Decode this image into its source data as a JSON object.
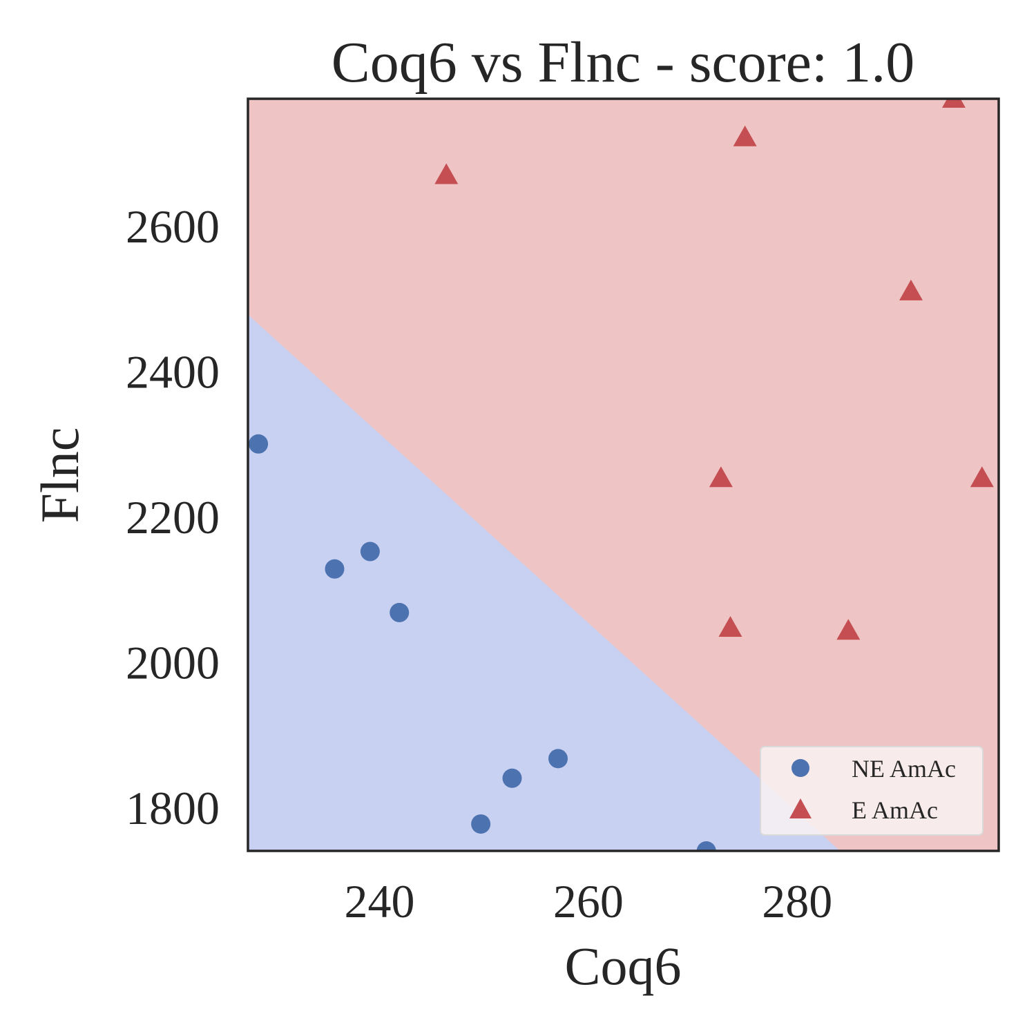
{
  "chart_data": {
    "type": "scatter",
    "title": "Coq6 vs Flnc - score: 1.0",
    "xlabel": "Coq6",
    "ylabel": "Flnc",
    "xlim": [
      227.4,
      299.3
    ],
    "ylim": [
      1740,
      2775
    ],
    "x_ticks": [
      240,
      260,
      280
    ],
    "y_ticks": [
      1800,
      2000,
      2200,
      2400,
      2600
    ],
    "grid": false,
    "legend_position": "bottom-right",
    "regions": [
      {
        "name": "NE AmAc",
        "color": "#c8d1f2"
      },
      {
        "name": "E AmAc",
        "color": "#eec4c4"
      }
    ],
    "decision_boundary": [
      [
        227.4,
        2478
      ],
      [
        284.1,
        1740
      ]
    ],
    "series": [
      {
        "name": "NE AmAc",
        "marker": "circle",
        "color": "#4c72b0",
        "points": [
          [
            228.4,
            2300
          ],
          [
            235.7,
            2128
          ],
          [
            239.1,
            2152
          ],
          [
            241.9,
            2068
          ],
          [
            249.7,
            1777
          ],
          [
            252.7,
            1840
          ],
          [
            257.1,
            1867
          ],
          [
            271.3,
            1740
          ]
        ]
      },
      {
        "name": "E AmAc",
        "marker": "triangle",
        "color": "#c44e52",
        "points": [
          [
            246.4,
            2670
          ],
          [
            275.0,
            2722
          ],
          [
            272.7,
            2253
          ],
          [
            273.6,
            2047
          ],
          [
            284.9,
            2043
          ],
          [
            290.9,
            2510
          ],
          [
            295.0,
            2775
          ],
          [
            297.7,
            2253
          ]
        ]
      }
    ]
  }
}
